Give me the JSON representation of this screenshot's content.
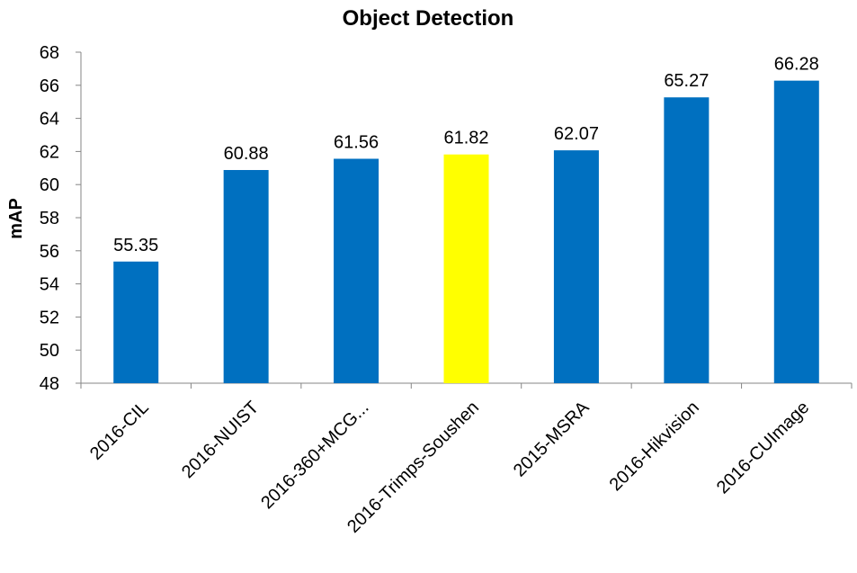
{
  "chart_data": {
    "type": "bar",
    "title": "Object Detection",
    "ylabel": "mAP",
    "xlabel": "",
    "ylim": [
      48,
      68
    ],
    "yticks": [
      48,
      50,
      52,
      54,
      56,
      58,
      60,
      62,
      64,
      66,
      68
    ],
    "grid": false,
    "categories": [
      "2016-CIL",
      "2016-NUIST",
      "2016-360+MCG...",
      "2016-Trimps-Soushen",
      "2015-MSRA",
      "2016-Hikvision",
      "2016-CUImage"
    ],
    "values": [
      55.35,
      60.88,
      61.56,
      61.82,
      62.07,
      65.27,
      66.28
    ],
    "data_labels": [
      "55.35",
      "60.88",
      "61.56",
      "61.82",
      "62.07",
      "65.27",
      "66.28"
    ],
    "bar_colors": [
      "#0070C0",
      "#0070C0",
      "#0070C0",
      "#FFFF00",
      "#0070C0",
      "#0070C0",
      "#0070C0"
    ]
  }
}
